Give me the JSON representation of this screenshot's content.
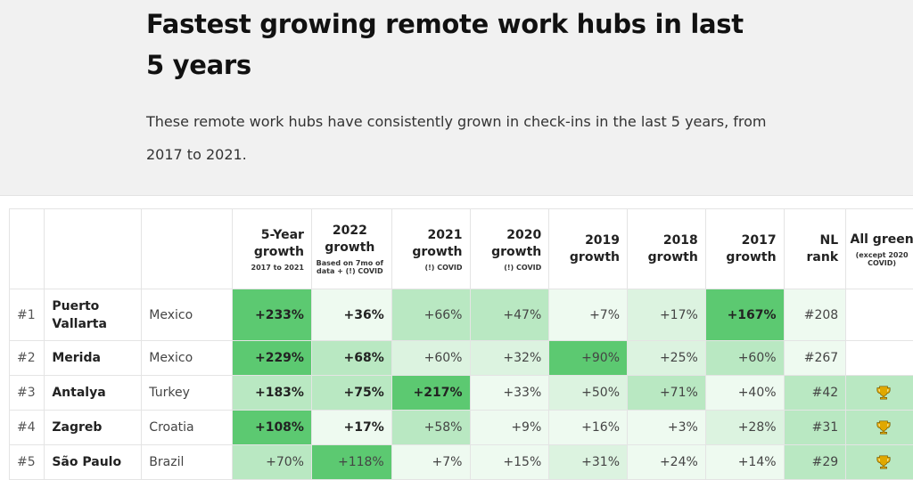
{
  "header": {
    "title": "Fastest growing remote work hubs in last 5 years",
    "description": "These remote work hubs have consistently grown in check-ins in the last 5 years, from 2017 to 2021."
  },
  "columns": {
    "five_year": {
      "label": "5-Year growth",
      "sub": "2017 to 2021"
    },
    "y2022": {
      "label": "2022 growth",
      "sub": "Based on 7mo of data + (!) COVID"
    },
    "y2021": {
      "label": "2021 growth",
      "sub": "(!) COVID"
    },
    "y2020": {
      "label": "2020 growth",
      "sub": "(!) COVID"
    },
    "y2019": {
      "label": "2019 growth"
    },
    "y2018": {
      "label": "2018 growth"
    },
    "y2017": {
      "label": "2017 growth"
    },
    "nl_rank": {
      "label": "NL rank"
    },
    "all_green": {
      "label": "All green",
      "sub": "(except 2020 COVID)"
    }
  },
  "rows": [
    {
      "rank": "#1",
      "city": "Puerto Vallarta",
      "country": "Mexico",
      "five_year": "+233%",
      "y2022": "+36%",
      "y2021": "+66%",
      "y2020": "+47%",
      "y2019": "+7%",
      "y2018": "+17%",
      "y2017": "+167%",
      "nl_rank": "#208",
      "all_green": false
    },
    {
      "rank": "#2",
      "city": "Merida",
      "country": "Mexico",
      "five_year": "+229%",
      "y2022": "+68%",
      "y2021": "+60%",
      "y2020": "+32%",
      "y2019": "+90%",
      "y2018": "+25%",
      "y2017": "+60%",
      "nl_rank": "#267",
      "all_green": false
    },
    {
      "rank": "#3",
      "city": "Antalya",
      "country": "Turkey",
      "five_year": "+183%",
      "y2022": "+75%",
      "y2021": "+217%",
      "y2020": "+33%",
      "y2019": "+50%",
      "y2018": "+71%",
      "y2017": "+40%",
      "nl_rank": "#42",
      "all_green": true
    },
    {
      "rank": "#4",
      "city": "Zagreb",
      "country": "Croatia",
      "five_year": "+108%",
      "y2022": "+17%",
      "y2021": "+58%",
      "y2020": "+9%",
      "y2019": "+16%",
      "y2018": "+3%",
      "y2017": "+28%",
      "nl_rank": "#31",
      "all_green": true
    },
    {
      "rank": "#5",
      "city": "São Paulo",
      "country": "Brazil",
      "five_year": "+70%",
      "y2022": "+118%",
      "y2021": "+7%",
      "y2020": "+15%",
      "y2019": "+31%",
      "y2018": "+24%",
      "y2017": "+14%",
      "nl_rank": "#29",
      "all_green": true
    }
  ],
  "colors": {
    "strong": "#5cc971",
    "medium": "#86d896",
    "light": "#b9e8c2",
    "pale": "#dcf3e0",
    "faint": "#eefaf0",
    "trophy": "#e0a800"
  }
}
